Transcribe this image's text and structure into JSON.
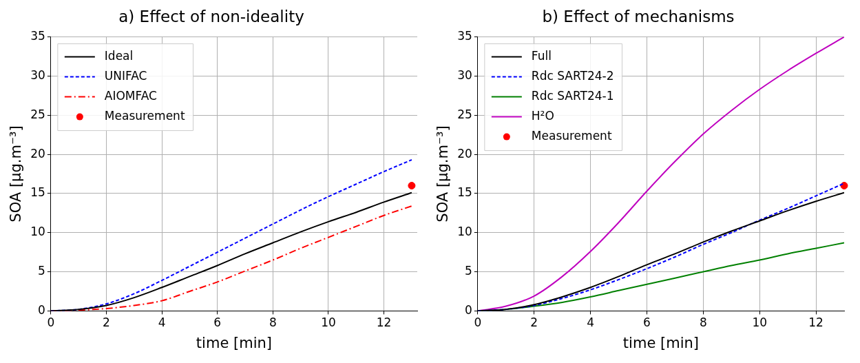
{
  "chart_data": [
    {
      "type": "line",
      "title": "a) Effect of non-ideality",
      "xlabel": "time [min]",
      "ylabel": "SOA [μg.m⁻³]",
      "x": [
        0,
        1,
        2,
        3,
        4,
        5,
        6,
        7,
        8,
        9,
        10,
        11,
        12,
        13
      ],
      "xlim": [
        0,
        13.2
      ],
      "xticks": [
        0,
        2,
        4,
        6,
        8,
        10,
        12
      ],
      "ylim": [
        0,
        35
      ],
      "yticks": [
        0,
        5,
        10,
        15,
        20,
        25,
        30,
        35
      ],
      "grid": true,
      "legend": "top left",
      "series": [
        {
          "name": "Ideal",
          "color": "#000000",
          "line_style": "solid",
          "values": [
            0,
            0.2,
            0.7,
            1.7,
            3.0,
            4.4,
            5.8,
            7.3,
            8.7,
            10.1,
            11.4,
            12.6,
            13.9,
            15.1
          ]
        },
        {
          "name": "UNIFAC",
          "color": "#0000ff",
          "line_style": "dashed",
          "values": [
            0,
            0.2,
            0.9,
            2.2,
            3.9,
            5.7,
            7.5,
            9.3,
            11.1,
            12.9,
            14.6,
            16.2,
            17.8,
            19.3
          ]
        },
        {
          "name": "AIOMFAC",
          "color": "#ff0000",
          "line_style": "dashdot",
          "values": [
            0,
            0.1,
            0.3,
            0.7,
            1.3,
            2.5,
            3.7,
            5.1,
            6.5,
            8.0,
            9.4,
            10.8,
            12.2,
            13.4
          ]
        },
        {
          "name": "Measurement",
          "type": "scatter",
          "marker": "circle",
          "color": "#ff0000",
          "x": [
            13
          ],
          "values": [
            16
          ]
        }
      ]
    },
    {
      "type": "line",
      "title": "b) Effect of mechanisms",
      "xlabel": "time [min]",
      "ylabel": "SOA [μg.m⁻³]",
      "x": [
        0,
        1,
        2,
        3,
        4,
        5,
        6,
        7,
        8,
        9,
        10,
        11,
        12,
        13
      ],
      "xlim": [
        0,
        13
      ],
      "xticks": [
        0,
        2,
        4,
        6,
        8,
        10,
        12
      ],
      "ylim": [
        0,
        35
      ],
      "yticks": [
        0,
        5,
        10,
        15,
        20,
        25,
        30,
        35
      ],
      "grid": true,
      "legend": "top left",
      "series": [
        {
          "name": "Full",
          "color": "#000000",
          "line_style": "solid",
          "values": [
            0,
            0.2,
            0.8,
            1.8,
            3.0,
            4.4,
            5.9,
            7.3,
            8.8,
            10.2,
            11.5,
            12.8,
            14.0,
            15.1
          ]
        },
        {
          "name": "Rdc SART24-2",
          "color": "#0000ff",
          "line_style": "dashed",
          "values": [
            0,
            0.2,
            0.7,
            1.6,
            2.7,
            4.0,
            5.4,
            6.9,
            8.5,
            10.0,
            11.6,
            13.1,
            14.7,
            16.3
          ]
        },
        {
          "name": "Rdc SART24-1",
          "color": "#008000",
          "line_style": "solid",
          "values": [
            0,
            0.2,
            0.6,
            1.1,
            1.8,
            2.6,
            3.4,
            4.2,
            5.0,
            5.8,
            6.5,
            7.3,
            8.0,
            8.7
          ]
        },
        {
          "name": "H²O",
          "color": "#bf00bf",
          "line_style": "solid",
          "values": [
            0,
            0.6,
            1.9,
            4.4,
            7.6,
            11.3,
            15.3,
            19.1,
            22.6,
            25.6,
            28.3,
            30.7,
            32.9,
            35
          ]
        },
        {
          "name": "Measurement",
          "type": "scatter",
          "marker": "circle",
          "color": "#ff0000",
          "x": [
            13
          ],
          "values": [
            16
          ]
        }
      ]
    }
  ]
}
